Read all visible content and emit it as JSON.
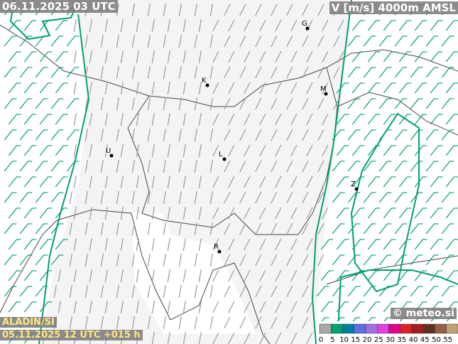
{
  "header": {
    "valid_time": "06.11.2025 03 UTC",
    "variable": "V [m/s] 4000m AMSL"
  },
  "footer": {
    "model": "ALADIN/SI",
    "run": "05.11.2025 12 UTC +015 h",
    "credit": "© meteo.si"
  },
  "cities": [
    {
      "label": "G"
    },
    {
      "label": "K"
    },
    {
      "label": "M"
    },
    {
      "label": "U"
    },
    {
      "label": "L"
    },
    {
      "label": "Z"
    },
    {
      "label": "R"
    }
  ],
  "legend": {
    "ticks": [
      0,
      5,
      10,
      15,
      20,
      25,
      30,
      35,
      40,
      45,
      50,
      55
    ],
    "colors": [
      "#a8a8a8",
      "#00a070",
      "#0080a0",
      "#6070e0",
      "#a070e0",
      "#e040e0",
      "#e00090",
      "#e02020",
      "#a02020",
      "#603020",
      "#906040",
      "#c0a070"
    ]
  }
}
